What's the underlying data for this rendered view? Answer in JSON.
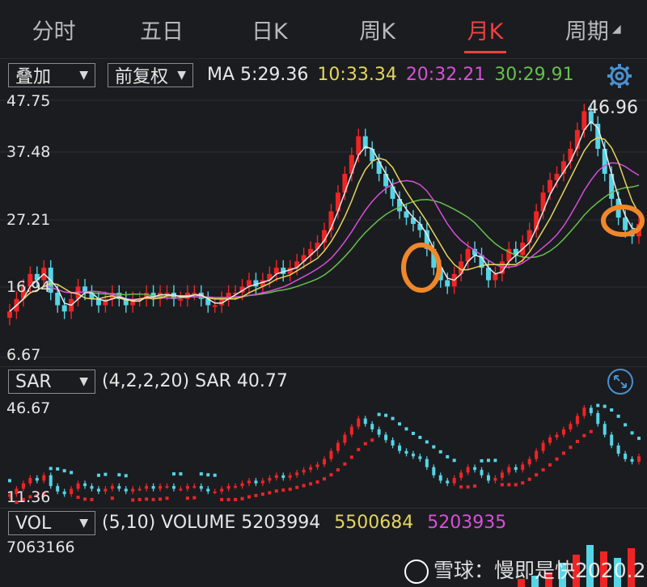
{
  "tabs": [
    {
      "label": "分时"
    },
    {
      "label": "五日"
    },
    {
      "label": "日K"
    },
    {
      "label": "周K"
    },
    {
      "label": "月K",
      "active": true
    },
    {
      "label": "周期",
      "has_dropdown": true
    }
  ],
  "toolbar": {
    "overlay_select": "叠加",
    "adjust_select": "前复权",
    "ma": [
      {
        "label": "MA 5:",
        "value": "29.36",
        "color": "#e8e8e8"
      },
      {
        "label": "10:",
        "value": "33.34",
        "color": "#e4d65a"
      },
      {
        "label": "20:",
        "value": "32.21",
        "color": "#d84fd8"
      },
      {
        "label": "30:",
        "value": "29.91",
        "color": "#66c04a"
      }
    ],
    "settings_icon": "gear-icon"
  },
  "price_axis": {
    "max": "47.75",
    "l2": "37.48",
    "l3": "27.21",
    "l4": "16.94",
    "min": "6.67",
    "high_marker": "46.96"
  },
  "sar_panel": {
    "select": "SAR",
    "params": "(4,2,2,20)",
    "label": "SAR",
    "value": "40.77",
    "axis_max": "46.67",
    "axis_min": "11.36",
    "expand_icon": "expand-icon"
  },
  "vol_panel": {
    "select": "VOL",
    "params": "(5,10)",
    "label": "VOLUME",
    "value": "5203994",
    "ma5": "5500684",
    "ma10": "5203935",
    "axis_max": "7063166"
  },
  "watermark": {
    "text": "雪球：慢即是快2020.2"
  },
  "colors": {
    "up": "#f02424",
    "down": "#55d5e6",
    "ma5": "#e8e8e8",
    "ma10": "#e4d65a",
    "ma20": "#d84fd8",
    "ma30": "#66c04a",
    "highlight": "#f0882a",
    "active_tab": "#f04040"
  }
}
